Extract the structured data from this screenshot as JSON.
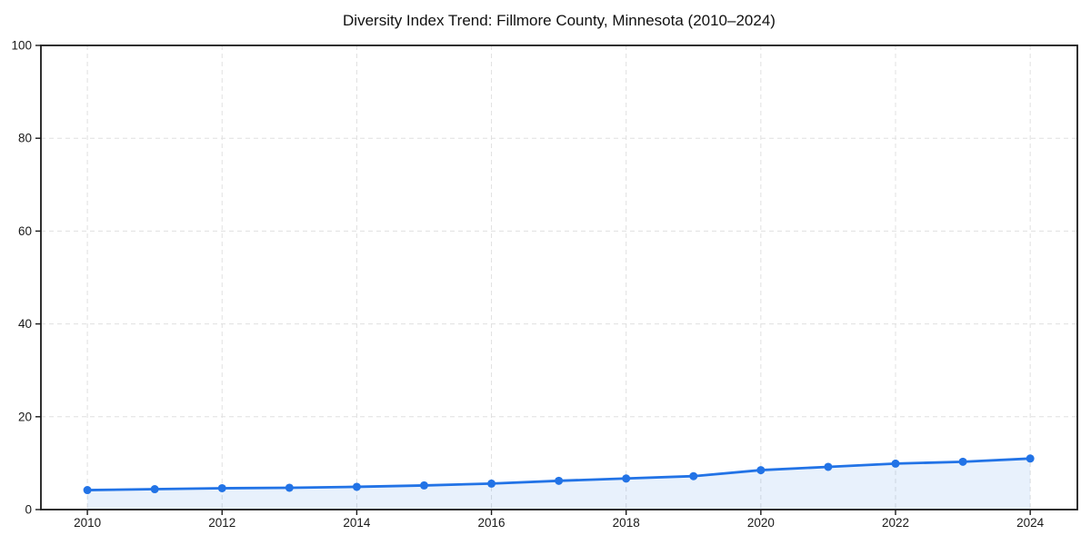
{
  "page": {
    "title": "Diversity Index Trend: Fillmore County, Minnesota (2010–2024)"
  },
  "chart_data": {
    "type": "area",
    "title": "Diversity Index Trend: Fillmore County, Minnesota (2010–2024)",
    "xlabel": "",
    "ylabel": "",
    "x": [
      2010,
      2011,
      2012,
      2013,
      2014,
      2015,
      2016,
      2017,
      2018,
      2019,
      2020,
      2021,
      2022,
      2023,
      2024
    ],
    "series": [
      {
        "name": "Diversity Index",
        "values": [
          4.2,
          4.4,
          4.6,
          4.7,
          4.9,
          5.2,
          5.6,
          6.2,
          6.7,
          7.2,
          8.5,
          9.2,
          9.9,
          10.3,
          11.0
        ]
      }
    ],
    "xlim": [
      2009.31,
      2024.7
    ],
    "ylim": [
      0,
      100
    ],
    "x_ticks": [
      2010,
      2012,
      2014,
      2016,
      2018,
      2020,
      2022,
      2024
    ],
    "y_ticks": [
      0,
      20,
      40,
      60,
      80,
      100
    ],
    "grid": "dashed-on",
    "legend": "none",
    "marker": "circle",
    "colors": {
      "line": "#2273e6",
      "marker": "#2273e6",
      "fill": "rgba(34,115,230,0.10)",
      "grid": "#e0e0e0",
      "spine": "#1a1a1a",
      "tick_label": "#1a1a1a",
      "title": "#111111",
      "background": "#ffffff"
    }
  }
}
